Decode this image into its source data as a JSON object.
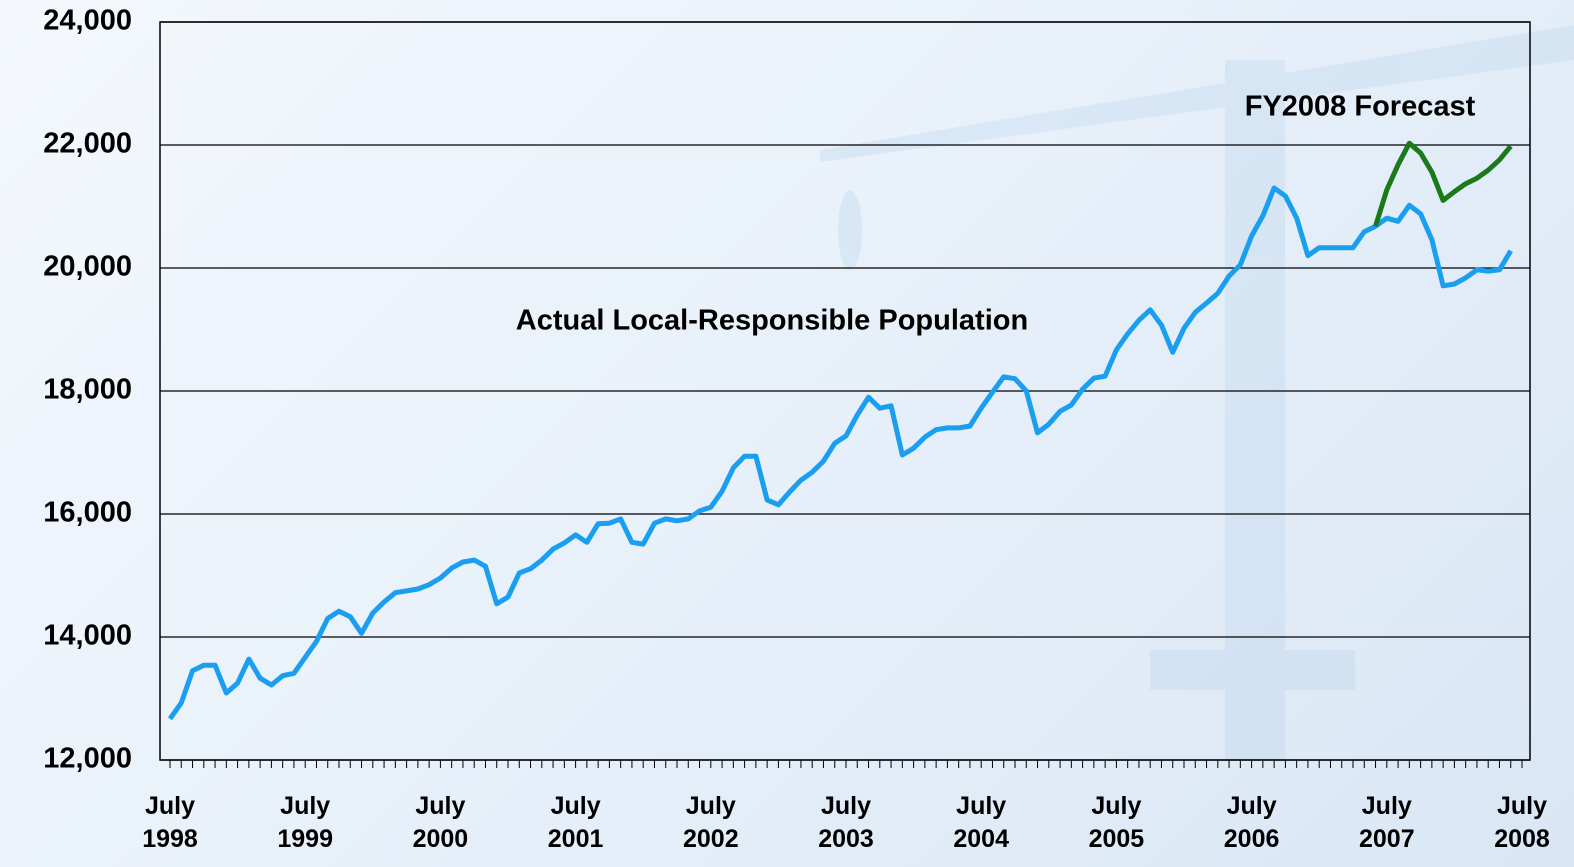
{
  "chart_data": {
    "type": "line",
    "annotations": [
      "FY2008 Forecast",
      "Actual Local-Responsible Population"
    ],
    "categories": [
      "July 1998",
      null,
      null,
      null,
      null,
      null,
      null,
      null,
      null,
      null,
      null,
      null,
      "July 1999",
      null,
      null,
      null,
      null,
      null,
      null,
      null,
      null,
      null,
      null,
      null,
      "July 2000",
      null,
      null,
      null,
      null,
      null,
      null,
      null,
      null,
      null,
      null,
      null,
      "July 2001",
      null,
      null,
      null,
      null,
      null,
      null,
      null,
      null,
      null,
      null,
      null,
      "July 2002",
      null,
      null,
      null,
      null,
      null,
      null,
      null,
      null,
      null,
      null,
      null,
      "July 2003",
      null,
      null,
      null,
      null,
      null,
      null,
      null,
      null,
      null,
      null,
      null,
      "July 2004",
      null,
      null,
      null,
      null,
      null,
      null,
      null,
      null,
      null,
      null,
      null,
      "July 2005",
      null,
      null,
      null,
      null,
      null,
      null,
      null,
      null,
      null,
      null,
      null,
      "July 2006",
      null,
      null,
      null,
      null,
      null,
      null,
      null,
      null,
      null,
      null,
      null,
      "July 2007",
      null,
      null,
      null,
      null,
      null,
      null,
      null,
      null,
      null,
      null,
      null,
      "July 2008"
    ],
    "series": [
      {
        "name": "Actual Local-Responsible Population",
        "color": "#1a9ef0",
        "values": [
          12670,
          12930,
          13450,
          13540,
          13540,
          13090,
          13250,
          13640,
          13330,
          13220,
          13370,
          13410,
          13670,
          13930,
          14300,
          14420,
          14330,
          14060,
          14390,
          14570,
          14720,
          14750,
          14780,
          14850,
          14960,
          15120,
          15220,
          15250,
          15150,
          14540,
          14650,
          15040,
          15110,
          15250,
          15430,
          15530,
          15660,
          15540,
          15840,
          15850,
          15920,
          15540,
          15510,
          15850,
          15920,
          15890,
          15920,
          16050,
          16110,
          16370,
          16750,
          16940,
          16940,
          16230,
          16150,
          16360,
          16550,
          16680,
          16860,
          17150,
          17270,
          17610,
          17900,
          17720,
          17760,
          16960,
          17070,
          17250,
          17370,
          17400,
          17400,
          17430,
          17720,
          17980,
          18230,
          18200,
          18000,
          17320,
          17460,
          17670,
          17770,
          18030,
          18210,
          18240,
          18670,
          18930,
          19150,
          19320,
          19070,
          18630,
          19020,
          19280,
          19430,
          19590,
          19870,
          20050,
          20520,
          20850,
          21300,
          21170,
          20810,
          20200,
          20330,
          20330,
          20330,
          20330,
          20590,
          20680,
          20810,
          20760,
          21020,
          20880,
          20460,
          19710,
          19740,
          19840,
          19970,
          19950,
          19970,
          20280,
          null
        ]
      },
      {
        "name": "FY2008 Forecast",
        "color": "#1a7a1a",
        "values": [
          null,
          null,
          null,
          null,
          null,
          null,
          null,
          null,
          null,
          null,
          null,
          null,
          null,
          null,
          null,
          null,
          null,
          null,
          null,
          null,
          null,
          null,
          null,
          null,
          null,
          null,
          null,
          null,
          null,
          null,
          null,
          null,
          null,
          null,
          null,
          null,
          null,
          null,
          null,
          null,
          null,
          null,
          null,
          null,
          null,
          null,
          null,
          null,
          null,
          null,
          null,
          null,
          null,
          null,
          null,
          null,
          null,
          null,
          null,
          null,
          null,
          null,
          null,
          null,
          null,
          null,
          null,
          null,
          null,
          null,
          null,
          null,
          null,
          null,
          null,
          null,
          null,
          null,
          null,
          null,
          null,
          null,
          null,
          null,
          null,
          null,
          null,
          null,
          null,
          null,
          null,
          null,
          null,
          null,
          null,
          null,
          null,
          null,
          null,
          null,
          null,
          null,
          null,
          null,
          null,
          null,
          null,
          20680,
          21270,
          21680,
          22030,
          21870,
          21560,
          21100,
          21240,
          21370,
          21460,
          21590,
          21760,
          21980,
          null
        ]
      }
    ],
    "ylim": [
      12000,
      24000
    ],
    "yticks": [
      {
        "value": 12000,
        "label": "12,000"
      },
      {
        "value": 14000,
        "label": "14,000"
      },
      {
        "value": 16000,
        "label": "16,000"
      },
      {
        "value": 18000,
        "label": "18,000"
      },
      {
        "value": 20000,
        "label": "20,000"
      },
      {
        "value": 22000,
        "label": "22,000"
      },
      {
        "value": 24000,
        "label": "24,000"
      }
    ],
    "grid": true
  }
}
